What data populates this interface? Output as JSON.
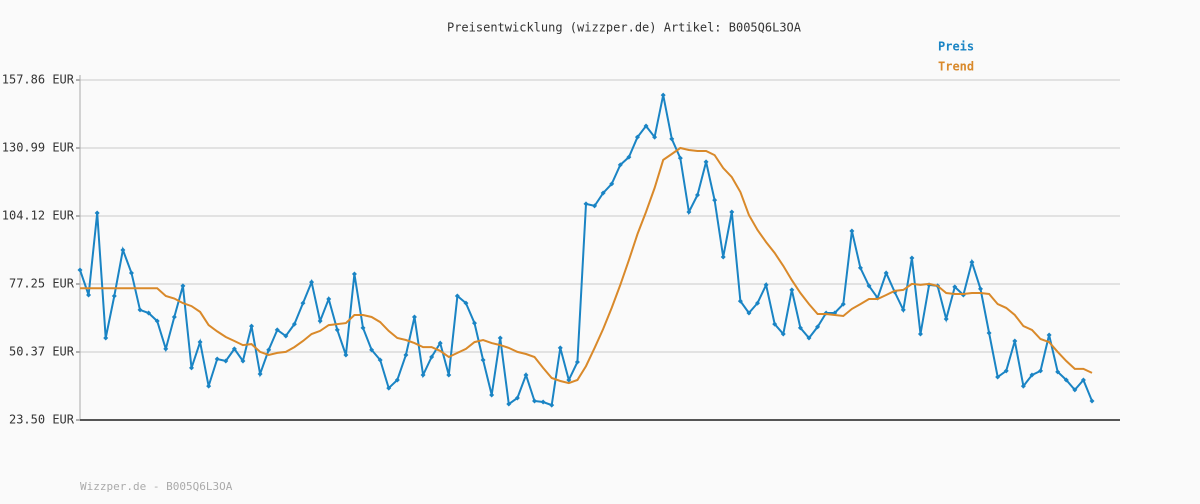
{
  "chart_data": {
    "type": "line",
    "title": "Preisentwicklung (wizzper.de) Artikel: B005Q6L3OA",
    "footer": "Wizzper.de - B005Q6L3OA",
    "ylim": [
      23.5,
      157.86
    ],
    "yticks": [
      {
        "value": 23.5,
        "label": "23.50 EUR"
      },
      {
        "value": 50.37,
        "label": "50.37 EUR"
      },
      {
        "value": 77.25,
        "label": "77.25 EUR"
      },
      {
        "value": 104.12,
        "label": "104.12 EUR"
      },
      {
        "value": 130.99,
        "label": "130.99 EUR"
      },
      {
        "value": 157.86,
        "label": "157.86 EUR"
      }
    ],
    "grid": true,
    "legend": "top-right",
    "series": [
      {
        "name": "Preis",
        "color": "#1a84c4",
        "markers": true,
        "values": [
          82.8,
          72.9,
          105.3,
          55.9,
          72.5,
          90.7,
          81.6,
          67.0,
          65.8,
          62.6,
          51.6,
          64.2,
          76.5,
          44.1,
          54.3,
          36.9,
          47.6,
          46.8,
          51.6,
          46.8,
          60.6,
          41.7,
          51.2,
          59.1,
          56.7,
          61.4,
          69.7,
          78.0,
          62.6,
          71.3,
          59.1,
          49.2,
          81.2,
          59.9,
          51.2,
          47.2,
          36.1,
          39.3,
          49.2,
          64.2,
          41.3,
          48.4,
          53.9,
          41.3,
          72.5,
          69.7,
          61.8,
          47.2,
          33.4,
          55.9,
          29.8,
          32.2,
          41.3,
          31.0,
          30.6,
          29.4,
          52.0,
          39.3,
          46.4,
          108.9,
          108.1,
          113.2,
          116.8,
          124.3,
          127.4,
          135.3,
          139.7,
          135.3,
          151.9,
          134.6,
          127.0,
          105.7,
          112.4,
          125.5,
          110.4,
          87.9,
          105.7,
          70.5,
          65.8,
          69.7,
          76.9,
          61.4,
          57.5,
          74.9,
          59.9,
          55.9,
          60.3,
          65.8,
          65.8,
          69.3,
          98.2,
          83.6,
          76.5,
          71.7,
          81.6,
          74.1,
          67.0,
          87.5,
          57.5,
          76.9,
          76.5,
          63.4,
          76.1,
          72.9,
          85.9,
          75.3,
          57.9,
          40.5,
          42.9,
          54.7,
          36.9,
          41.3,
          42.9,
          57.1,
          42.5,
          39.3,
          35.4,
          39.3,
          31.0
        ]
      },
      {
        "name": "Trend",
        "color": "#d9892a",
        "markers": false,
        "values": [
          75.6,
          75.6,
          75.6,
          75.6,
          75.6,
          75.6,
          75.6,
          75.6,
          75.6,
          75.6,
          72.5,
          71.5,
          69.7,
          68.5,
          66.2,
          61.0,
          58.5,
          56.3,
          54.7,
          53.1,
          53.5,
          50.4,
          49.2,
          50.0,
          50.4,
          52.3,
          54.7,
          57.5,
          58.7,
          61.0,
          61.4,
          61.8,
          65.0,
          65.0,
          64.2,
          62.2,
          58.7,
          55.9,
          55.1,
          53.9,
          52.3,
          52.3,
          50.8,
          48.4,
          50.0,
          51.6,
          54.3,
          55.1,
          53.9,
          53.1,
          52.0,
          50.4,
          49.6,
          48.4,
          44.1,
          40.1,
          38.9,
          38.1,
          39.3,
          44.8,
          52.0,
          59.5,
          67.8,
          76.9,
          86.7,
          97.0,
          105.7,
          115.2,
          126.3,
          128.6,
          131.0,
          130.2,
          129.8,
          129.8,
          128.2,
          123.1,
          119.5,
          113.6,
          104.5,
          98.6,
          93.8,
          89.5,
          84.4,
          78.8,
          73.7,
          69.3,
          65.4,
          65.4,
          65.0,
          64.6,
          67.4,
          69.3,
          71.3,
          71.3,
          72.9,
          74.5,
          74.9,
          77.3,
          76.9,
          77.3,
          76.5,
          73.7,
          73.3,
          73.3,
          73.7,
          73.7,
          73.3,
          69.3,
          67.8,
          65.0,
          60.6,
          59.1,
          55.5,
          54.3,
          50.4,
          46.8,
          43.7,
          43.7,
          42.1
        ]
      }
    ]
  }
}
